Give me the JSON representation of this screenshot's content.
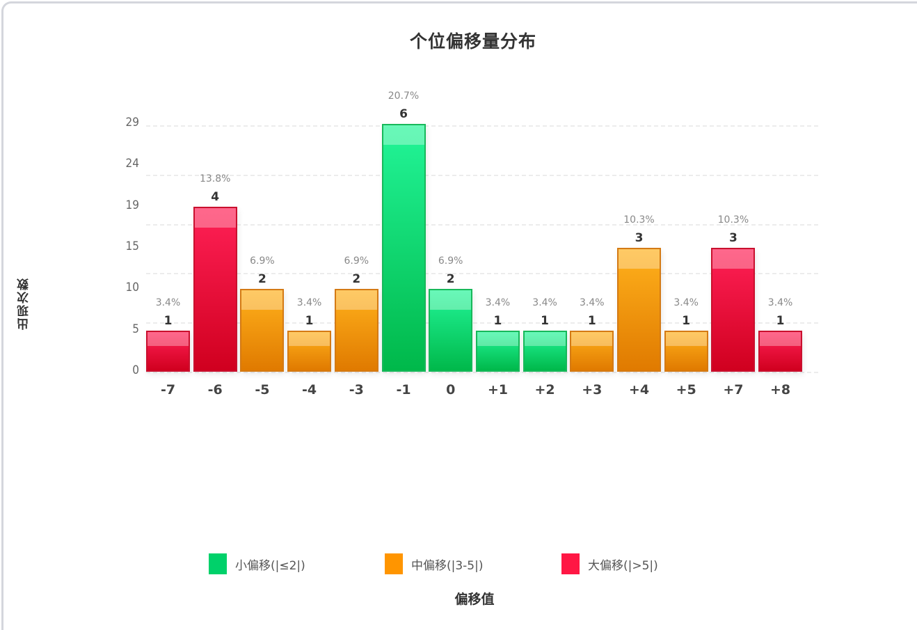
{
  "chart_data": {
    "type": "bar",
    "title": "个位偏移量分布",
    "xlabel": "偏移值",
    "ylabel": "出现次数",
    "categories": [
      "-7",
      "-6",
      "-5",
      "-4",
      "-3",
      "-1",
      "0",
      "+1",
      "+2",
      "+3",
      "+4",
      "+5",
      "+7",
      "+8"
    ],
    "values": [
      1,
      4,
      2,
      1,
      2,
      6,
      2,
      1,
      1,
      1,
      3,
      1,
      3,
      1
    ],
    "percentages": [
      "3.4%",
      "13.8%",
      "6.9%",
      "3.4%",
      "6.9%",
      "20.7%",
      "6.9%",
      "3.4%",
      "3.4%",
      "3.4%",
      "10.3%",
      "3.4%",
      "10.3%",
      "3.4%"
    ],
    "groups": [
      "large",
      "large",
      "medium",
      "medium",
      "medium",
      "small",
      "small",
      "small",
      "small",
      "medium",
      "medium",
      "medium",
      "large",
      "large"
    ],
    "y_tick_labels": [
      "0",
      "5",
      "10",
      "15",
      "19",
      "24",
      "29"
    ],
    "ylim": [
      0,
      6
    ],
    "grid": true,
    "legend_position": "bottom",
    "legend": [
      {
        "key": "small",
        "label": "小偏移(|≤2|)",
        "color": "#00d16a"
      },
      {
        "key": "medium",
        "label": "中偏移(|3-5|)",
        "color": "#ff9500"
      },
      {
        "key": "large",
        "label": "大偏移(|>5|)",
        "color": "#ff1744"
      }
    ]
  },
  "colors": {
    "small": {
      "top": "#22f598",
      "bottom": "#00b84a",
      "border": "#17b85a"
    },
    "medium": {
      "top": "#ffb11c",
      "bottom": "#e07a00",
      "border": "#d47a14"
    },
    "large": {
      "top": "#ff2056",
      "bottom": "#d0001f",
      "border": "#c9102e"
    }
  }
}
